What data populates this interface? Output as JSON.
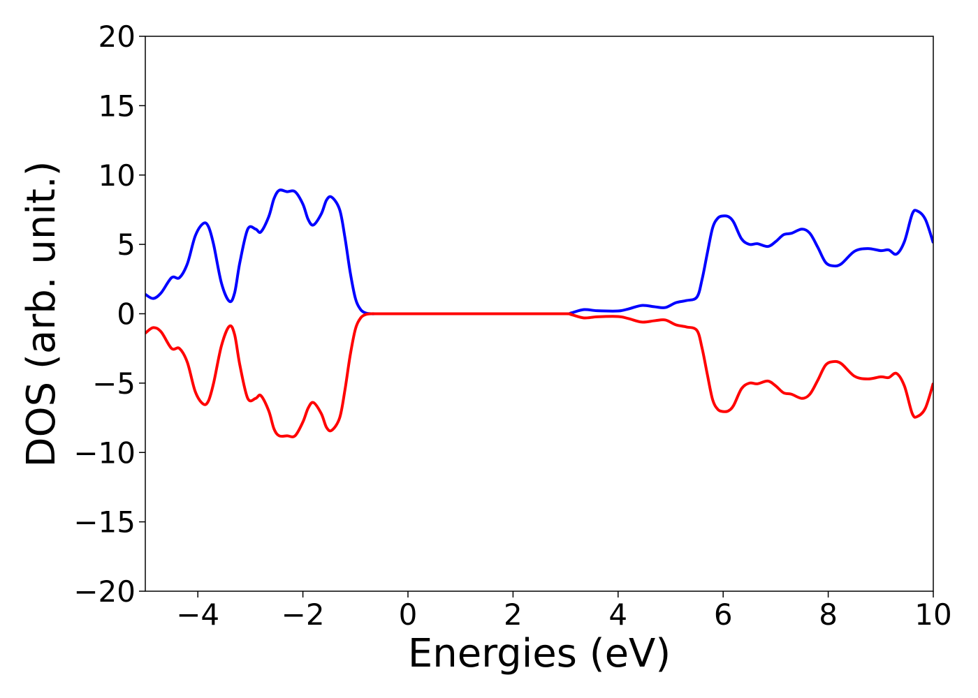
{
  "chart_data": {
    "type": "line",
    "xlabel": "Energies (eV)",
    "ylabel": "DOS (arb. unit.)",
    "xlim": [
      -5,
      10
    ],
    "ylim": [
      -20,
      20
    ],
    "xticks": [
      -4,
      -2,
      0,
      2,
      4,
      6,
      8,
      10
    ],
    "xtick_labels": [
      "−4",
      "−2",
      "0",
      "2",
      "4",
      "6",
      "8",
      "10"
    ],
    "yticks": [
      -20,
      -15,
      -10,
      -5,
      0,
      5,
      10,
      15,
      20
    ],
    "ytick_labels": [
      "−20",
      "−15",
      "−10",
      "−5",
      "0",
      "5",
      "10",
      "15",
      "20"
    ],
    "grid": false,
    "series": [
      {
        "color": "#0000ff",
        "x": [
          -5.0,
          -4.85,
          -4.7,
          -4.5,
          -4.35,
          -4.2,
          -4.05,
          -3.9,
          -3.8,
          -3.7,
          -3.55,
          -3.4,
          -3.3,
          -3.2,
          -3.05,
          -2.9,
          -2.8,
          -2.65,
          -2.55,
          -2.45,
          -2.3,
          -2.15,
          -2.0,
          -1.9,
          -1.8,
          -1.65,
          -1.55,
          -1.45,
          -1.3,
          -1.2,
          -1.1,
          -1.0,
          -0.9,
          -0.8,
          -0.7,
          -0.6,
          -0.5,
          -0.3,
          0.0,
          1.0,
          2.0,
          3.0,
          3.1,
          3.35,
          3.6,
          4.0,
          4.2,
          4.45,
          4.7,
          4.9,
          5.1,
          5.3,
          5.5,
          5.6,
          5.7,
          5.8,
          5.9,
          6.0,
          6.1,
          6.2,
          6.35,
          6.5,
          6.65,
          6.85,
          7.0,
          7.15,
          7.3,
          7.5,
          7.65,
          7.8,
          7.95,
          8.1,
          8.25,
          8.5,
          8.75,
          9.0,
          9.15,
          9.3,
          9.45,
          9.6,
          9.7,
          9.85,
          10.0
        ],
        "y": [
          1.4,
          1.1,
          1.5,
          2.6,
          2.6,
          3.6,
          5.6,
          6.5,
          6.3,
          5.0,
          2.2,
          0.9,
          1.5,
          3.7,
          6.1,
          6.1,
          5.9,
          7.0,
          8.3,
          8.9,
          8.8,
          8.8,
          7.9,
          6.8,
          6.4,
          7.2,
          8.2,
          8.4,
          7.5,
          5.5,
          3.0,
          1.1,
          0.3,
          0.05,
          0.0,
          0.0,
          0.0,
          0.0,
          0.0,
          0.0,
          0.0,
          0.0,
          0.05,
          0.3,
          0.22,
          0.2,
          0.35,
          0.6,
          0.5,
          0.45,
          0.8,
          0.95,
          1.2,
          2.5,
          4.4,
          6.2,
          6.9,
          7.05,
          7.0,
          6.6,
          5.4,
          5.0,
          5.05,
          4.85,
          5.2,
          5.7,
          5.8,
          6.1,
          5.8,
          4.8,
          3.7,
          3.45,
          3.6,
          4.5,
          4.7,
          4.55,
          4.6,
          4.3,
          5.2,
          7.2,
          7.4,
          6.8,
          5.1
        ]
      },
      {
        "color": "#ff0000",
        "x": [
          -5.0,
          -4.85,
          -4.7,
          -4.5,
          -4.35,
          -4.2,
          -4.05,
          -3.9,
          -3.8,
          -3.7,
          -3.55,
          -3.4,
          -3.3,
          -3.2,
          -3.05,
          -2.9,
          -2.8,
          -2.65,
          -2.55,
          -2.45,
          -2.3,
          -2.15,
          -2.0,
          -1.9,
          -1.8,
          -1.65,
          -1.55,
          -1.45,
          -1.3,
          -1.2,
          -1.1,
          -1.0,
          -0.9,
          -0.8,
          -0.7,
          -0.6,
          -0.5,
          -0.3,
          0.0,
          1.0,
          2.0,
          3.0,
          3.1,
          3.35,
          3.6,
          4.0,
          4.2,
          4.45,
          4.7,
          4.9,
          5.1,
          5.3,
          5.5,
          5.6,
          5.7,
          5.8,
          5.9,
          6.0,
          6.1,
          6.2,
          6.35,
          6.5,
          6.65,
          6.85,
          7.0,
          7.15,
          7.3,
          7.5,
          7.65,
          7.8,
          7.95,
          8.1,
          8.25,
          8.5,
          8.75,
          9.0,
          9.15,
          9.3,
          9.45,
          9.6,
          9.7,
          9.85,
          10.0
        ],
        "y": [
          -1.4,
          -1.0,
          -1.3,
          -2.5,
          -2.5,
          -3.5,
          -5.6,
          -6.5,
          -6.3,
          -5.0,
          -2.3,
          -0.9,
          -1.5,
          -3.7,
          -6.1,
          -6.1,
          -5.9,
          -7.0,
          -8.3,
          -8.8,
          -8.8,
          -8.8,
          -7.8,
          -6.8,
          -6.4,
          -7.2,
          -8.2,
          -8.4,
          -7.5,
          -5.5,
          -3.0,
          -1.1,
          -0.3,
          -0.05,
          0.0,
          0.0,
          0.0,
          0.0,
          0.0,
          0.0,
          0.0,
          0.0,
          -0.05,
          -0.3,
          -0.22,
          -0.2,
          -0.35,
          -0.6,
          -0.5,
          -0.45,
          -0.8,
          -0.95,
          -1.2,
          -2.5,
          -4.4,
          -6.2,
          -6.9,
          -7.05,
          -7.0,
          -6.6,
          -5.4,
          -5.0,
          -5.05,
          -4.85,
          -5.2,
          -5.7,
          -5.8,
          -6.1,
          -5.8,
          -4.8,
          -3.7,
          -3.45,
          -3.6,
          -4.5,
          -4.7,
          -4.55,
          -4.6,
          -4.3,
          -5.2,
          -7.2,
          -7.4,
          -6.8,
          -5.0
        ]
      }
    ]
  }
}
